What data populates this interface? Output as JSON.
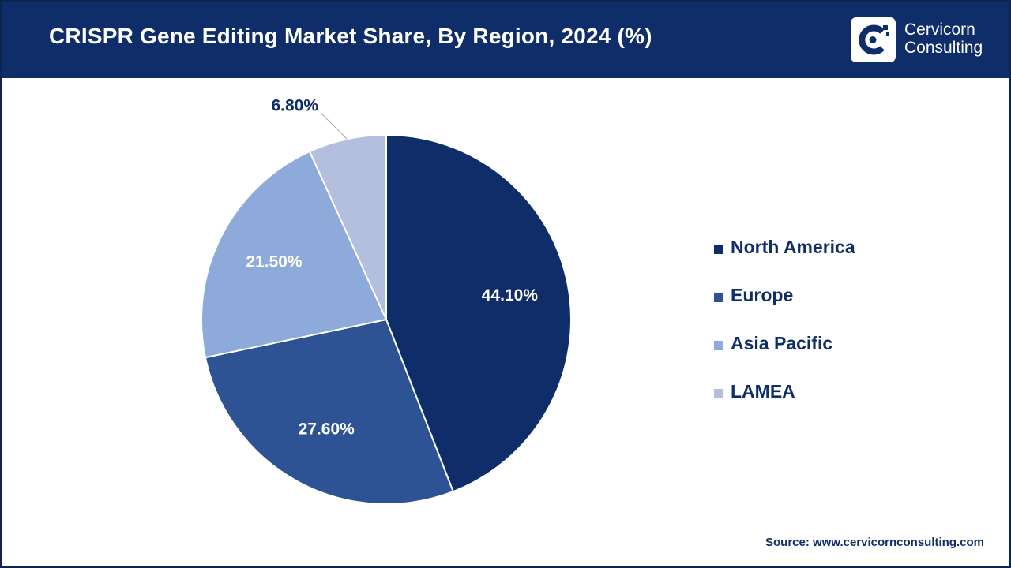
{
  "header": {
    "title": "CRISPR Gene Editing Market Share, By Region, 2024 (%)",
    "logo": {
      "line1": "Cervicorn",
      "line2": "Consulting"
    }
  },
  "colors": {
    "header_bg": "#0e2d69",
    "north_america": "#0e2d69",
    "europe": "#2e5395",
    "asia_pacific": "#8eaadb",
    "lamea": "#b4bedf"
  },
  "chart_data": {
    "type": "pie",
    "title": "CRISPR Gene Editing Market Share, By Region, 2024 (%)",
    "categories": [
      "North America",
      "Europe",
      "Asia Pacific",
      "LAMEA"
    ],
    "values": [
      44.1,
      27.6,
      21.5,
      6.8
    ],
    "labels": [
      "44.10%",
      "27.60%",
      "21.50%",
      "6.80%"
    ],
    "colors": [
      "#0e2d69",
      "#2e5395",
      "#8eaadb",
      "#b4bedf"
    ],
    "legend_position": "right"
  },
  "source": "Source: www.cervicornconsulting.com"
}
